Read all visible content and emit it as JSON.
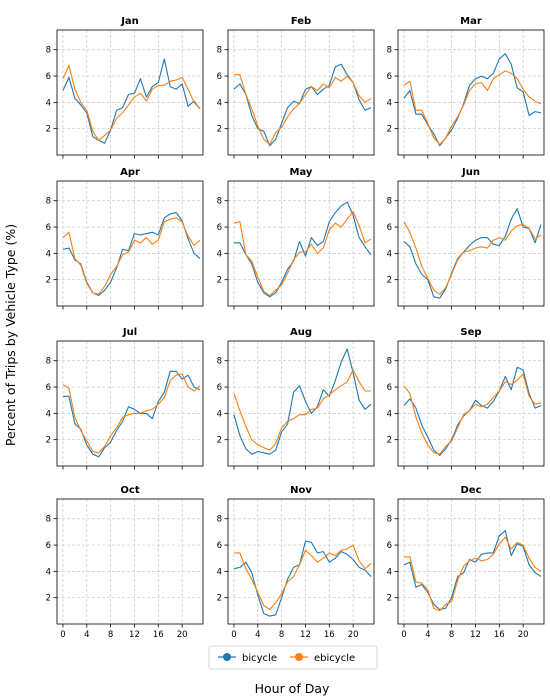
{
  "chart_data": {
    "type": "line",
    "layout": "small-multiples",
    "xlabel": "Hour of Day",
    "ylabel": "Percent of Trips by Vehicle Type (%)",
    "xlim": [
      -1,
      23.5
    ],
    "ylim": [
      0,
      9.5
    ],
    "xticks": [
      0,
      4,
      8,
      12,
      16,
      20
    ],
    "yticks": [
      2,
      4,
      6,
      8
    ],
    "grid": true,
    "legend_position": "bottom-center",
    "legend": [
      "bicycle",
      "ebicycle"
    ],
    "colors": {
      "bicycle": "#1f77b4",
      "ebicycle": "#ff7f0e"
    },
    "hours": [
      0,
      1,
      2,
      3,
      4,
      5,
      6,
      7,
      8,
      9,
      10,
      11,
      12,
      13,
      14,
      15,
      16,
      17,
      18,
      19,
      20,
      21,
      22,
      23
    ],
    "panels": [
      {
        "title": "Jan",
        "series": [
          {
            "name": "bicycle",
            "values": [
              4.9,
              5.9,
              4.3,
              3.8,
              3.2,
              1.4,
              1.1,
              0.9,
              1.9,
              3.4,
              3.6,
              4.6,
              4.7,
              5.8,
              4.4,
              5.2,
              5.5,
              7.3,
              5.2,
              5.0,
              5.4,
              3.7,
              4.1,
              3.5
            ]
          },
          {
            "name": "ebicycle",
            "values": [
              5.8,
              6.8,
              5.0,
              4.0,
              3.4,
              1.8,
              1.1,
              1.5,
              1.9,
              2.8,
              3.2,
              3.8,
              4.4,
              4.7,
              4.1,
              5.0,
              5.3,
              5.3,
              5.6,
              5.7,
              5.9,
              5.0,
              4.0,
              3.5
            ]
          }
        ]
      },
      {
        "title": "Feb",
        "series": [
          {
            "name": "bicycle",
            "values": [
              5.0,
              5.4,
              4.6,
              3.0,
              2.0,
              1.8,
              0.7,
              1.2,
              2.4,
              3.6,
              4.1,
              3.9,
              5.0,
              5.2,
              4.6,
              5.0,
              5.3,
              6.7,
              6.9,
              6.1,
              5.5,
              4.2,
              3.4,
              3.6
            ]
          },
          {
            "name": "ebicycle",
            "values": [
              6.1,
              6.1,
              4.6,
              3.5,
              2.2,
              1.2,
              0.8,
              1.7,
              2.1,
              2.9,
              3.5,
              3.9,
              4.6,
              5.2,
              4.9,
              5.4,
              5.1,
              5.9,
              5.6,
              6.0,
              5.5,
              4.5,
              4.0,
              4.3
            ]
          }
        ]
      },
      {
        "title": "Mar",
        "series": [
          {
            "name": "bicycle",
            "values": [
              4.3,
              4.9,
              3.1,
              3.1,
              2.3,
              1.6,
              0.7,
              1.3,
              1.9,
              2.8,
              3.9,
              5.3,
              5.8,
              6.0,
              5.8,
              6.2,
              7.3,
              7.7,
              6.9,
              5.1,
              4.8,
              3.0,
              3.3,
              3.2
            ]
          },
          {
            "name": "ebicycle",
            "values": [
              5.3,
              5.6,
              3.4,
              3.4,
              2.4,
              1.3,
              0.8,
              1.3,
              2.2,
              2.9,
              3.8,
              4.9,
              5.4,
              5.5,
              4.9,
              5.8,
              6.1,
              6.4,
              6.2,
              5.8,
              5.0,
              4.4,
              4.1,
              3.9
            ]
          }
        ]
      },
      {
        "title": "Apr",
        "series": [
          {
            "name": "bicycle",
            "values": [
              4.3,
              4.4,
              3.5,
              3.2,
              1.8,
              1.0,
              0.8,
              1.2,
              1.8,
              2.9,
              4.3,
              4.2,
              5.5,
              5.4,
              5.5,
              5.6,
              5.4,
              6.7,
              7.0,
              7.1,
              6.5,
              5.1,
              4.0,
              3.6
            ]
          },
          {
            "name": "ebicycle",
            "values": [
              5.2,
              5.6,
              3.6,
              3.1,
              1.7,
              1.0,
              0.9,
              1.5,
              2.4,
              3.0,
              3.9,
              4.1,
              5.0,
              4.8,
              5.2,
              4.7,
              5.0,
              6.4,
              6.6,
              6.7,
              6.4,
              5.3,
              4.6,
              5.0
            ]
          }
        ]
      },
      {
        "title": "May",
        "series": [
          {
            "name": "bicycle",
            "values": [
              4.8,
              4.8,
              3.9,
              3.2,
              1.8,
              1.0,
              0.7,
              1.0,
              1.8,
              2.8,
              3.4,
              4.9,
              3.8,
              5.2,
              4.6,
              4.9,
              6.4,
              7.1,
              7.6,
              7.9,
              6.9,
              5.2,
              4.5,
              3.9
            ]
          },
          {
            "name": "ebicycle",
            "values": [
              6.3,
              6.4,
              3.9,
              3.4,
              2.2,
              1.1,
              0.8,
              1.2,
              1.6,
              2.5,
              3.5,
              4.1,
              4.1,
              4.7,
              4.0,
              4.4,
              5.8,
              6.3,
              6.0,
              6.6,
              7.2,
              6.1,
              4.8,
              5.1
            ]
          }
        ]
      },
      {
        "title": "Jun",
        "series": [
          {
            "name": "bicycle",
            "values": [
              4.9,
              4.5,
              3.2,
              2.4,
              2.0,
              0.7,
              0.6,
              1.3,
              2.5,
              3.6,
              4.1,
              4.6,
              5.0,
              5.2,
              5.2,
              4.7,
              4.6,
              5.3,
              6.6,
              7.4,
              6.0,
              5.9,
              4.8,
              6.2
            ]
          },
          {
            "name": "ebicycle",
            "values": [
              6.4,
              5.6,
              4.4,
              3.0,
              2.1,
              1.2,
              0.9,
              1.4,
              2.4,
              3.5,
              4.1,
              4.2,
              4.4,
              4.5,
              4.4,
              5.0,
              5.2,
              5.0,
              5.7,
              6.1,
              6.2,
              5.9,
              5.1,
              5.4
            ]
          }
        ]
      },
      {
        "title": "Jul",
        "series": [
          {
            "name": "bicycle",
            "values": [
              5.3,
              5.3,
              3.2,
              2.8,
              1.6,
              0.9,
              0.7,
              1.4,
              1.8,
              2.7,
              3.4,
              4.5,
              4.3,
              4.0,
              4.0,
              3.6,
              4.9,
              5.6,
              7.2,
              7.2,
              6.6,
              6.9,
              6.0,
              5.8
            ]
          },
          {
            "name": "ebicycle",
            "values": [
              6.2,
              5.9,
              3.7,
              2.7,
              1.9,
              1.1,
              1.0,
              1.5,
              2.3,
              2.9,
              3.7,
              3.9,
              4.0,
              4.0,
              4.2,
              4.3,
              4.7,
              5.2,
              6.5,
              6.9,
              7.0,
              6.0,
              5.7,
              6.1
            ]
          }
        ]
      },
      {
        "title": "Aug",
        "series": [
          {
            "name": "bicycle",
            "values": [
              3.9,
              2.3,
              1.3,
              0.9,
              1.1,
              1.0,
              0.9,
              1.2,
              2.6,
              3.2,
              5.6,
              6.1,
              4.9,
              4.0,
              4.5,
              5.8,
              5.3,
              6.5,
              7.9,
              8.9,
              7.1,
              5.0,
              4.3,
              4.7
            ]
          },
          {
            "name": "ebicycle",
            "values": [
              5.5,
              4.2,
              3.0,
              2.0,
              1.6,
              1.4,
              1.2,
              1.7,
              2.9,
              3.4,
              3.6,
              3.9,
              3.9,
              4.3,
              4.4,
              5.1,
              5.4,
              5.8,
              6.1,
              6.4,
              7.3,
              6.4,
              5.7,
              5.7
            ]
          }
        ]
      },
      {
        "title": "Sep",
        "series": [
          {
            "name": "bicycle",
            "values": [
              4.6,
              5.1,
              4.4,
              3.1,
              2.2,
              1.2,
              0.8,
              1.3,
              2.0,
              3.1,
              3.8,
              4.2,
              5.0,
              4.6,
              4.4,
              4.9,
              5.7,
              6.8,
              5.8,
              7.5,
              7.3,
              5.5,
              4.4,
              4.6
            ]
          },
          {
            "name": "ebicycle",
            "values": [
              6.1,
              5.5,
              3.7,
              2.5,
              1.6,
              1.0,
              0.9,
              1.5,
              1.9,
              2.9,
              3.9,
              4.2,
              4.7,
              4.5,
              4.7,
              5.2,
              5.7,
              6.4,
              6.2,
              6.5,
              7.0,
              5.3,
              4.7,
              4.8
            ]
          }
        ]
      },
      {
        "title": "Oct",
        "series": [
          {
            "name": "bicycle",
            "values": []
          },
          {
            "name": "ebicycle",
            "values": []
          }
        ]
      },
      {
        "title": "Nov",
        "series": [
          {
            "name": "bicycle",
            "values": [
              4.2,
              4.3,
              4.7,
              3.9,
              2.2,
              0.8,
              0.6,
              0.7,
              2.0,
              3.4,
              4.3,
              4.5,
              6.3,
              6.2,
              5.4,
              5.5,
              4.7,
              5.0,
              5.5,
              5.3,
              4.9,
              4.3,
              4.1,
              3.6
            ]
          },
          {
            "name": "ebicycle",
            "values": [
              5.4,
              5.4,
              4.2,
              3.4,
              2.4,
              1.4,
              1.1,
              1.6,
              2.3,
              3.2,
              3.6,
              4.5,
              5.6,
              5.2,
              4.7,
              5.0,
              5.4,
              5.2,
              5.6,
              5.7,
              6.0,
              4.8,
              4.2,
              4.6
            ]
          }
        ]
      },
      {
        "title": "Dec",
        "series": [
          {
            "name": "bicycle",
            "values": [
              4.5,
              4.7,
              2.8,
              3.0,
              2.4,
              1.5,
              1.1,
              1.2,
              2.0,
              3.6,
              3.9,
              4.9,
              4.7,
              5.3,
              5.4,
              5.4,
              6.7,
              7.1,
              5.2,
              6.1,
              5.9,
              4.5,
              3.9,
              3.6
            ]
          },
          {
            "name": "ebicycle",
            "values": [
              5.1,
              5.1,
              3.2,
              3.1,
              2.6,
              1.2,
              1.0,
              1.5,
              1.7,
              3.3,
              4.4,
              4.8,
              5.0,
              4.8,
              4.9,
              5.3,
              6.1,
              6.6,
              5.7,
              6.2,
              6.0,
              5.0,
              4.3,
              4.0
            ]
          }
        ]
      }
    ]
  }
}
